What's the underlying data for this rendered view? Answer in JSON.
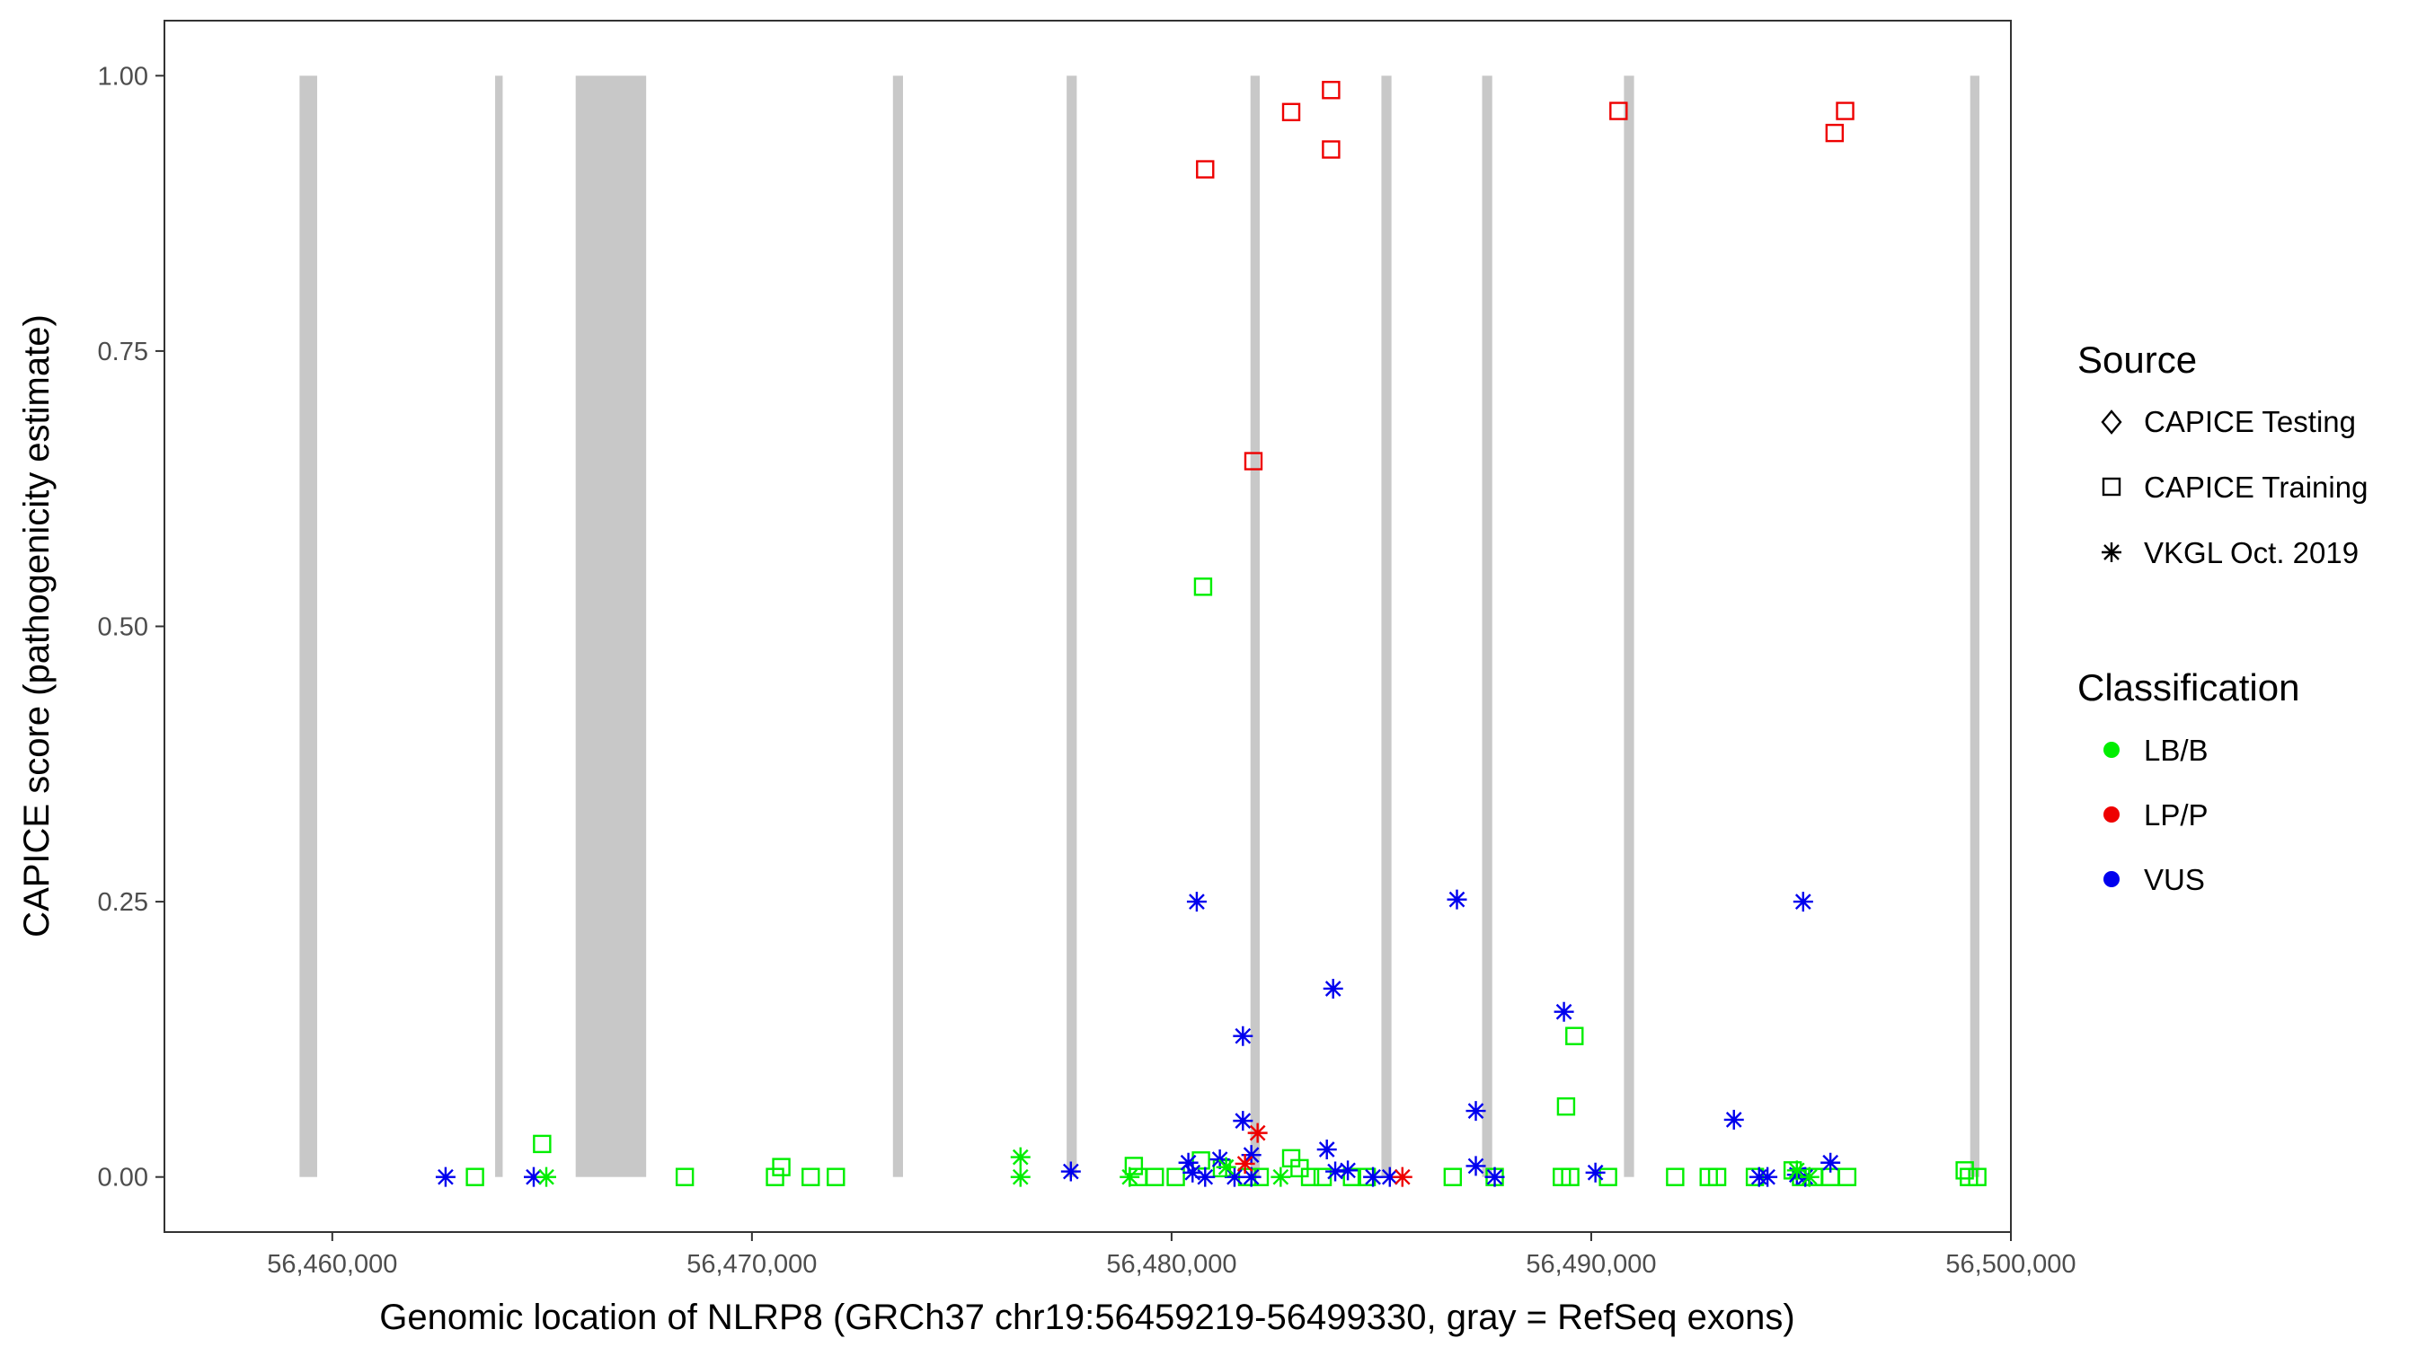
{
  "chart_data": {
    "type": "scatter",
    "xlabel": "Genomic location of NLRP8 (GRCh37 chr19:56459219-56499330, gray = RefSeq exons)",
    "ylabel": "CAPICE score (pathogenicity estimate)",
    "xlim": [
      56456000,
      56500000
    ],
    "ylim": [
      -0.05,
      1.05
    ],
    "x_ticks": [
      56460000,
      56470000,
      56480000,
      56490000,
      56500000
    ],
    "x_tick_labels": [
      "56,460,000",
      "56,470,000",
      "56,480,000",
      "56,490,000",
      "56,500,000"
    ],
    "y_ticks": [
      0,
      0.25,
      0.5,
      0.75,
      1.0
    ],
    "y_tick_labels": [
      "0.00",
      "0.25",
      "0.50",
      "0.75",
      "1.00"
    ],
    "grid": false,
    "exons": [
      [
        56459220,
        56459640
      ],
      [
        56463880,
        56464060
      ],
      [
        56465800,
        56467480
      ],
      [
        56473360,
        56473600
      ],
      [
        56477500,
        56477740
      ],
      [
        56481880,
        56482100
      ],
      [
        56485000,
        56485240
      ],
      [
        56487400,
        56487640
      ],
      [
        56490780,
        56491020
      ],
      [
        56499030,
        56499250
      ]
    ],
    "legend": {
      "placement": "right",
      "source": {
        "title": "Source",
        "entries": [
          {
            "label": "CAPICE Testing",
            "shape": "diamond"
          },
          {
            "label": "CAPICE Training",
            "shape": "square"
          },
          {
            "label": "VKGL Oct. 2019",
            "shape": "asterisk"
          }
        ]
      },
      "classification": {
        "title": "Classification",
        "entries": [
          {
            "label": "LB/B",
            "color": "#00ee00"
          },
          {
            "label": "LP/P",
            "color": "#ee0000"
          },
          {
            "label": "VUS",
            "color": "#0000ee"
          }
        ]
      }
    },
    "series": [
      {
        "source": "CAPICE Training",
        "classification": "LP/P",
        "points": [
          [
            56480800,
            0.915
          ],
          [
            56482850,
            0.967
          ],
          [
            56483800,
            0.987
          ],
          [
            56483800,
            0.933
          ],
          [
            56490650,
            0.968
          ],
          [
            56495800,
            0.948
          ],
          [
            56496050,
            0.968
          ],
          [
            56481950,
            0.65
          ]
        ]
      },
      {
        "source": "CAPICE Training",
        "classification": "LB/B",
        "points": [
          [
            56480750,
            0.536
          ],
          [
            56489600,
            0.128
          ],
          [
            56489400,
            0.064
          ],
          [
            56465000,
            0.03
          ],
          [
            56463400,
            0
          ],
          [
            56468400,
            0
          ],
          [
            56470700,
            0.009
          ],
          [
            56470550,
            0
          ],
          [
            56471400,
            0
          ],
          [
            56472000,
            0
          ],
          [
            56479100,
            0.01
          ],
          [
            56479200,
            0
          ],
          [
            56479600,
            0
          ],
          [
            56480100,
            0
          ],
          [
            56480700,
            0.015
          ],
          [
            56481200,
            0.008
          ],
          [
            56481800,
            0
          ],
          [
            56482100,
            0
          ],
          [
            56482850,
            0.017
          ],
          [
            56483050,
            0.008
          ],
          [
            56483300,
            0
          ],
          [
            56483600,
            0
          ],
          [
            56484300,
            0
          ],
          [
            56484650,
            0
          ],
          [
            56486700,
            0
          ],
          [
            56487700,
            0
          ],
          [
            56489300,
            0
          ],
          [
            56489500,
            0
          ],
          [
            56490400,
            0
          ],
          [
            56492000,
            0
          ],
          [
            56492800,
            0
          ],
          [
            56493000,
            0
          ],
          [
            56493900,
            0
          ],
          [
            56494800,
            0.006
          ],
          [
            56495000,
            0
          ],
          [
            56495300,
            0
          ],
          [
            56495700,
            0
          ],
          [
            56496100,
            0
          ],
          [
            56498900,
            0.006
          ],
          [
            56499000,
            0
          ],
          [
            56499200,
            0
          ]
        ]
      },
      {
        "source": "VKGL Oct. 2019",
        "classification": "VUS",
        "points": [
          [
            56480600,
            0.25
          ],
          [
            56486800,
            0.252
          ],
          [
            56495050,
            0.25
          ],
          [
            56483850,
            0.171
          ],
          [
            56489350,
            0.15
          ],
          [
            56481700,
            0.128
          ],
          [
            56487250,
            0.06
          ],
          [
            56481700,
            0.051
          ],
          [
            56493400,
            0.052
          ],
          [
            56483700,
            0.025
          ],
          [
            56481900,
            0.02
          ],
          [
            56481150,
            0.016
          ],
          [
            56480400,
            0.013
          ],
          [
            56487250,
            0.01
          ],
          [
            56495700,
            0.013
          ],
          [
            56462700,
            0
          ],
          [
            56464800,
            0
          ],
          [
            56477600,
            0.005
          ],
          [
            56480500,
            0.004
          ],
          [
            56480800,
            0
          ],
          [
            56481500,
            0
          ],
          [
            56481900,
            0
          ],
          [
            56483900,
            0.005
          ],
          [
            56484200,
            0.006
          ],
          [
            56484800,
            0
          ],
          [
            56485200,
            0
          ],
          [
            56487700,
            0
          ],
          [
            56490100,
            0.004
          ],
          [
            56494000,
            0
          ],
          [
            56494200,
            0
          ],
          [
            56494900,
            0.002
          ],
          [
            56495100,
            0
          ]
        ]
      },
      {
        "source": "VKGL Oct. 2019",
        "classification": "LB/B",
        "points": [
          [
            56476400,
            0.018
          ],
          [
            56476400,
            0
          ],
          [
            56465100,
            0
          ],
          [
            56479000,
            0
          ],
          [
            56481300,
            0.009
          ],
          [
            56482600,
            0
          ],
          [
            56494900,
            0.006
          ],
          [
            56495200,
            0
          ]
        ]
      },
      {
        "source": "VKGL Oct. 2019",
        "classification": "LP/P",
        "points": [
          [
            56482050,
            0.04
          ],
          [
            56481750,
            0.012
          ],
          [
            56485500,
            0
          ]
        ]
      }
    ]
  }
}
